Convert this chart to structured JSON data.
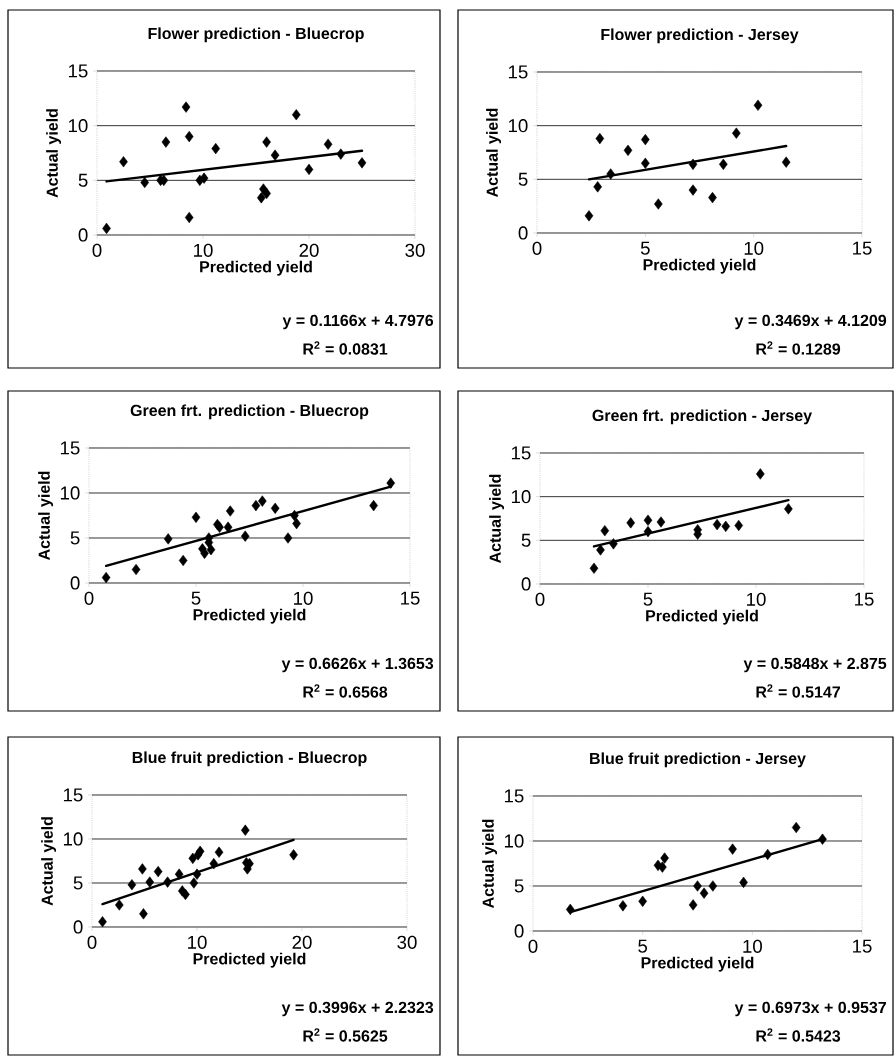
{
  "chart_data": [
    {
      "type": "scatter",
      "title": "Flower prediction - Bluecrop",
      "xlabel": "Predicted yield",
      "ylabel": "Actual yield",
      "xlim": [
        0,
        30
      ],
      "ylim": [
        0,
        15
      ],
      "xticks": [
        0,
        10,
        20,
        30
      ],
      "yticks": [
        0,
        5,
        10,
        15
      ],
      "grid": "y",
      "marker": "diamond",
      "series": [
        {
          "color": "#000000",
          "x": [
            0.9,
            2.5,
            4.5,
            6,
            6.3,
            6.5,
            8.4,
            8.7,
            8.7,
            9.7,
            10.1,
            11.2,
            15.5,
            15.7,
            16,
            16,
            16.8,
            18.8,
            20,
            21.8,
            23,
            25
          ],
          "values": [
            0.6,
            6.7,
            4.8,
            5,
            5,
            8.5,
            11.7,
            9,
            1.6,
            5,
            5.2,
            7.9,
            3.4,
            4.2,
            3.8,
            8.5,
            7.3,
            11,
            6,
            8.3,
            7.4,
            6.6
          ]
        },
        {
          "type": "line",
          "marker": "none",
          "color": "#000000",
          "x": [
            0.9,
            25
          ],
          "values": [
            4.9,
            7.7
          ]
        }
      ],
      "annotations": [
        "y = 0.1166x + 4.7976",
        "R$^{2}$ = 0.0831"
      ]
    },
    {
      "type": "scatter",
      "title": "Flower prediction - Jersey",
      "xlabel": "Predicted yield",
      "ylabel": "Actual yield",
      "xlim": [
        0,
        15
      ],
      "ylim": [
        0,
        15
      ],
      "xticks": [
        0,
        5,
        10,
        15
      ],
      "yticks": [
        0,
        5,
        10,
        15
      ],
      "grid": "y",
      "marker": "diamond",
      "series": [
        {
          "color": "#000000",
          "x": [
            2.4,
            2.8,
            2.9,
            3.4,
            4.2,
            5,
            5,
            5.6,
            7.2,
            7.2,
            8.1,
            8.6,
            9.2,
            10.2,
            11.5
          ],
          "values": [
            1.6,
            4.3,
            8.8,
            5.5,
            7.7,
            8.7,
            6.5,
            2.7,
            6.4,
            4,
            3.3,
            6.4,
            9.3,
            11.9,
            6.6
          ]
        },
        {
          "type": "line",
          "marker": "none",
          "color": "#000000",
          "x": [
            2.4,
            11.5
          ],
          "values": [
            5,
            8.1
          ]
        }
      ],
      "annotations": [
        "y = 0.3469x + 4.1209",
        "R$^{2}$ = 0.1289"
      ]
    },
    {
      "type": "scatter",
      "title": "Green frt. prediction - Bluecrop",
      "xlabel": "Predicted yield",
      "ylabel": "Actual yield",
      "xlim": [
        0,
        15
      ],
      "ylim": [
        0,
        15
      ],
      "xticks": [
        0,
        5,
        10,
        15
      ],
      "yticks": [
        0,
        5,
        10,
        15
      ],
      "grid": "y",
      "marker": "diamond",
      "series": [
        {
          "color": "#000000",
          "x": [
            0.8,
            2.2,
            3.7,
            4.4,
            5,
            5.3,
            5.4,
            5.6,
            5.7,
            5.6,
            6,
            6.1,
            6.5,
            6.6,
            7.3,
            7.8,
            8.1,
            8.7,
            9.3,
            9.6,
            9.7,
            13.3,
            14.1
          ],
          "values": [
            0.6,
            1.5,
            4.9,
            2.5,
            7.3,
            3.8,
            3.3,
            4.5,
            3.7,
            5,
            6.5,
            6.2,
            6.2,
            8,
            5.2,
            8.6,
            9.1,
            8.3,
            5,
            7.5,
            6.6,
            8.6,
            11.1
          ]
        },
        {
          "type": "line",
          "marker": "none",
          "color": "#000000",
          "x": [
            0.8,
            14.1
          ],
          "values": [
            1.9,
            10.7
          ]
        }
      ],
      "annotations": [
        "y = 0.6626x + 1.3653",
        "R$^{2}$ = 0.6568"
      ]
    },
    {
      "type": "scatter",
      "title": "Green frt. prediction - Jersey",
      "xlabel": "Predicted yield",
      "ylabel": "Actual yield",
      "xlim": [
        0,
        15
      ],
      "ylim": [
        0,
        15
      ],
      "xticks": [
        0,
        5,
        10,
        15
      ],
      "yticks": [
        0,
        5,
        10,
        15
      ],
      "grid": "y",
      "marker": "diamond",
      "series": [
        {
          "color": "#000000",
          "x": [
            2.5,
            2.8,
            3,
            3.4,
            4.2,
            5,
            5,
            5.6,
            7.3,
            7.3,
            8.2,
            8.6,
            9.2,
            10.2,
            11.5
          ],
          "values": [
            1.8,
            3.9,
            6.1,
            4.6,
            7,
            7.3,
            6,
            7.1,
            6.2,
            5.7,
            6.8,
            6.6,
            6.7,
            12.6,
            8.6
          ]
        },
        {
          "type": "line",
          "marker": "none",
          "color": "#000000",
          "x": [
            2.5,
            11.5
          ],
          "values": [
            4.3,
            9.6
          ]
        }
      ],
      "annotations": [
        "y = 0.5848x + 2.875",
        "R$^{2}$ = 0.5147"
      ]
    },
    {
      "type": "scatter",
      "title": "Blue fruit prediction - Bluecrop",
      "xlabel": "Predicted yield",
      "ylabel": "Actual yield",
      "xlim": [
        0,
        30
      ],
      "ylim": [
        0,
        15
      ],
      "xticks": [
        0,
        10,
        20,
        30
      ],
      "yticks": [
        0,
        5,
        10,
        15
      ],
      "grid": "y",
      "marker": "diamond",
      "series": [
        {
          "color": "#000000",
          "x": [
            1,
            2.6,
            3.8,
            4.8,
            4.9,
            5.5,
            6.3,
            7.2,
            8.3,
            8.6,
            8.9,
            9.6,
            9.7,
            10,
            10.1,
            10.3,
            11.6,
            12.1,
            14.6,
            14.7,
            14.8,
            15,
            19.2
          ],
          "values": [
            0.6,
            2.5,
            4.8,
            6.6,
            1.5,
            5.1,
            6.3,
            5.1,
            6,
            4.1,
            3.7,
            7.8,
            5,
            6,
            8.2,
            8.6,
            7.2,
            8.5,
            11,
            7.3,
            6.6,
            7.2,
            8.2
          ]
        },
        {
          "type": "line",
          "marker": "none",
          "color": "#000000",
          "x": [
            1,
            19.2
          ],
          "values": [
            2.6,
            9.9
          ]
        }
      ],
      "annotations": [
        "y = 0.3996x + 2.2323",
        "R$^{2}$ = 0.5625"
      ]
    },
    {
      "type": "scatter",
      "title": "Blue fruit prediction - Jersey",
      "xlabel": "Predicted yield",
      "ylabel": "Actual yield",
      "xlim": [
        0,
        15
      ],
      "ylim": [
        0,
        15
      ],
      "xticks": [
        0,
        5,
        10,
        15
      ],
      "yticks": [
        0,
        5,
        10,
        15
      ],
      "grid": "y",
      "marker": "diamond",
      "series": [
        {
          "color": "#000000",
          "x": [
            1.7,
            4.1,
            5,
            5.7,
            5.9,
            6,
            7.3,
            7.5,
            7.8,
            8.2,
            9.1,
            9.6,
            10.7,
            12,
            13.2
          ],
          "values": [
            2.4,
            2.8,
            3.3,
            7.3,
            7.1,
            8.1,
            2.9,
            5,
            4.2,
            5,
            9.1,
            5.4,
            8.5,
            11.5,
            10.2
          ]
        },
        {
          "type": "line",
          "marker": "none",
          "color": "#000000",
          "x": [
            1.7,
            13.2
          ],
          "values": [
            2.1,
            10.2
          ]
        }
      ],
      "annotations": [
        "y = 0.6973x + 0.9537",
        "R$^{2}$ = 0.5423"
      ]
    }
  ]
}
